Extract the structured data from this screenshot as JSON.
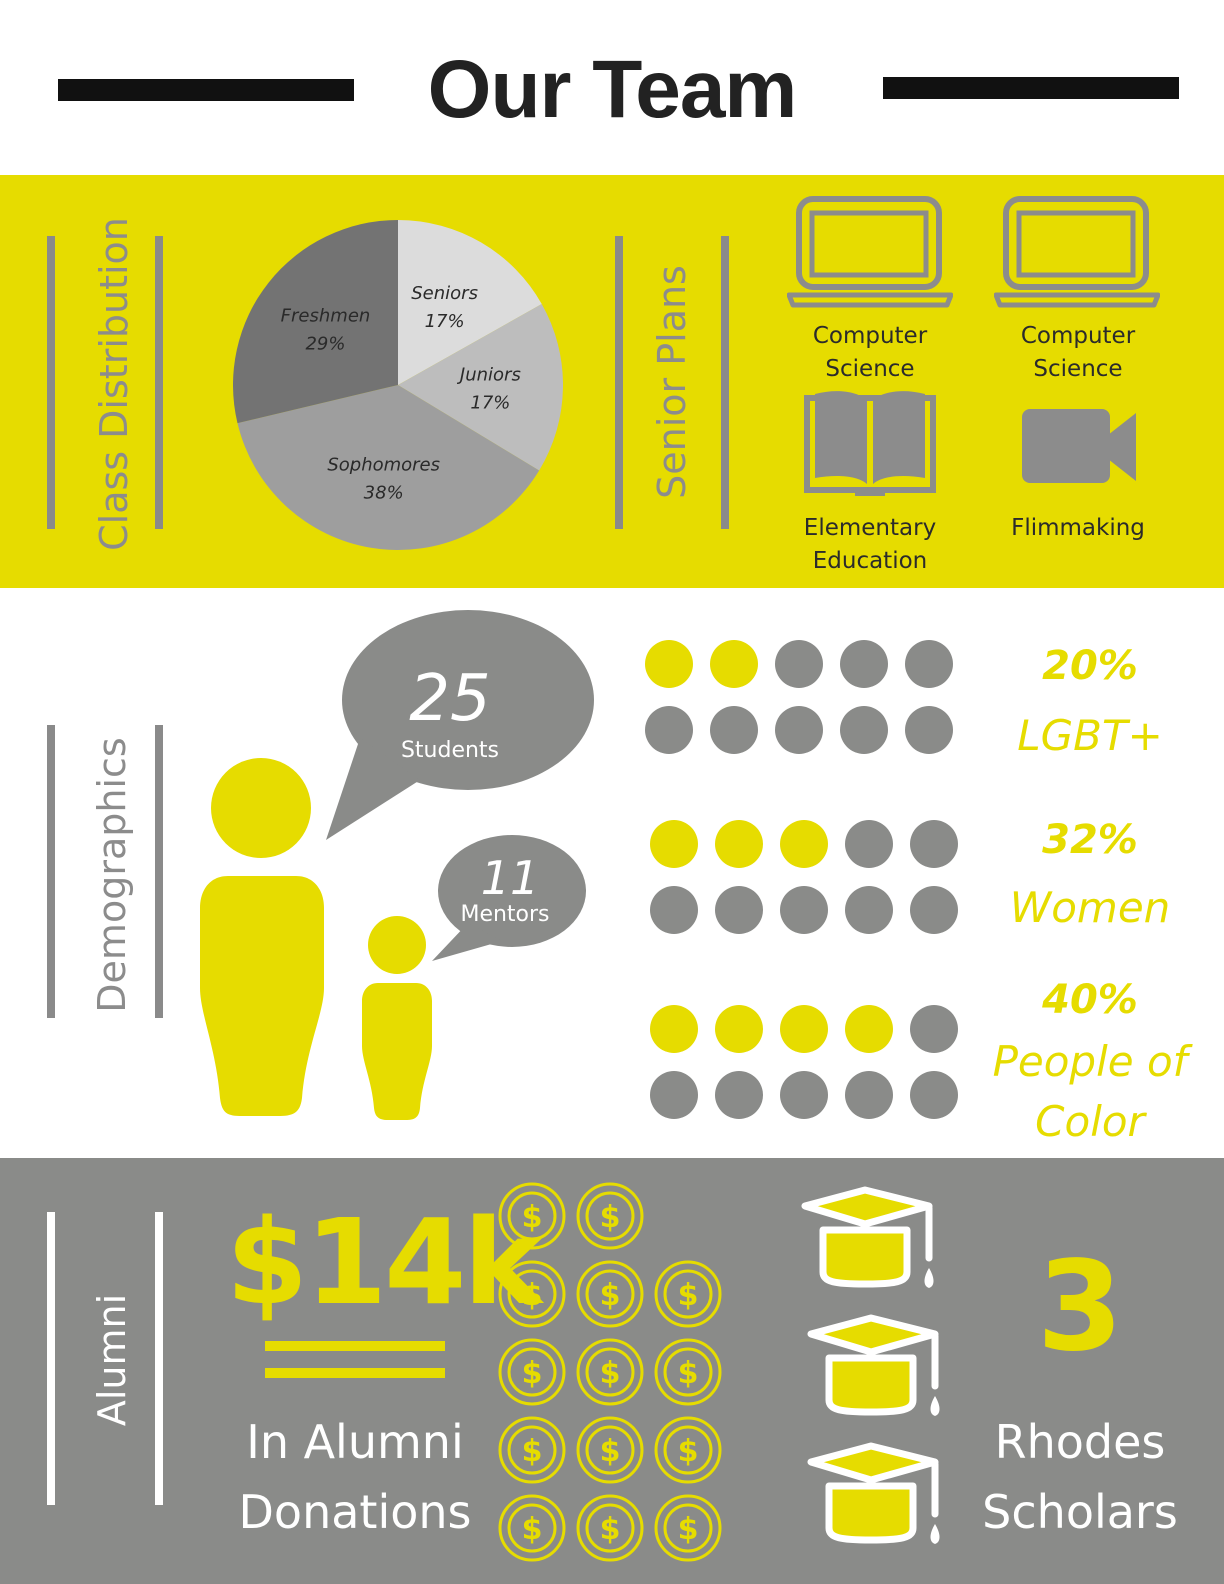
{
  "header": {
    "title": "Our Team"
  },
  "class_distribution": {
    "label": "Class Distribution",
    "chart_data": {
      "type": "pie",
      "slices": [
        {
          "name": "Seniors",
          "value": 17,
          "label": "17%",
          "color": "#dcdcdc"
        },
        {
          "name": "Juniors",
          "value": 17,
          "label": "17%",
          "color": "#bdbdbd"
        },
        {
          "name": "Sophomores",
          "value": 38,
          "label": "38%",
          "color": "#9e9e9e"
        },
        {
          "name": "Freshmen",
          "value": 29,
          "label": "29%",
          "color": "#737373"
        }
      ]
    }
  },
  "senior_plans": {
    "label": "Senior Plans",
    "items": [
      {
        "icon": "laptop-icon",
        "line1": "Computer",
        "line2": "Science"
      },
      {
        "icon": "laptop-icon",
        "line1": "Computer",
        "line2": "Science"
      },
      {
        "icon": "book-icon",
        "line1": "Elementary",
        "line2": "Education"
      },
      {
        "icon": "video-camera-icon",
        "line1": "Flimmaking",
        "line2": ""
      }
    ]
  },
  "demographics": {
    "label": "Demographics",
    "students": {
      "number": "25",
      "label": "Students"
    },
    "mentors": {
      "number": "11",
      "label": "Mentors"
    },
    "stats": [
      {
        "pct": "20%",
        "lines": [
          "LGBT+"
        ],
        "filled_dots": 2,
        "total_dots": 10
      },
      {
        "pct": "32%",
        "lines": [
          "Women"
        ],
        "filled_dots": 3,
        "total_dots": 10
      },
      {
        "pct": "40%",
        "lines": [
          "People of",
          "Color"
        ],
        "filled_dots": 4,
        "total_dots": 10
      }
    ]
  },
  "alumni": {
    "label": "Alumni",
    "amount": "$14k",
    "donations_line1": "In Alumni",
    "donations_line2": "Donations",
    "coin_symbol": "$",
    "scholars_number": "3",
    "scholars_line1": "Rhodes",
    "scholars_line2": "Scholars"
  },
  "colors": {
    "yellow": "#e6dc00",
    "gray": "#8a8b89",
    "dark": "#222222",
    "icon_gray": "#8c8c8c"
  }
}
